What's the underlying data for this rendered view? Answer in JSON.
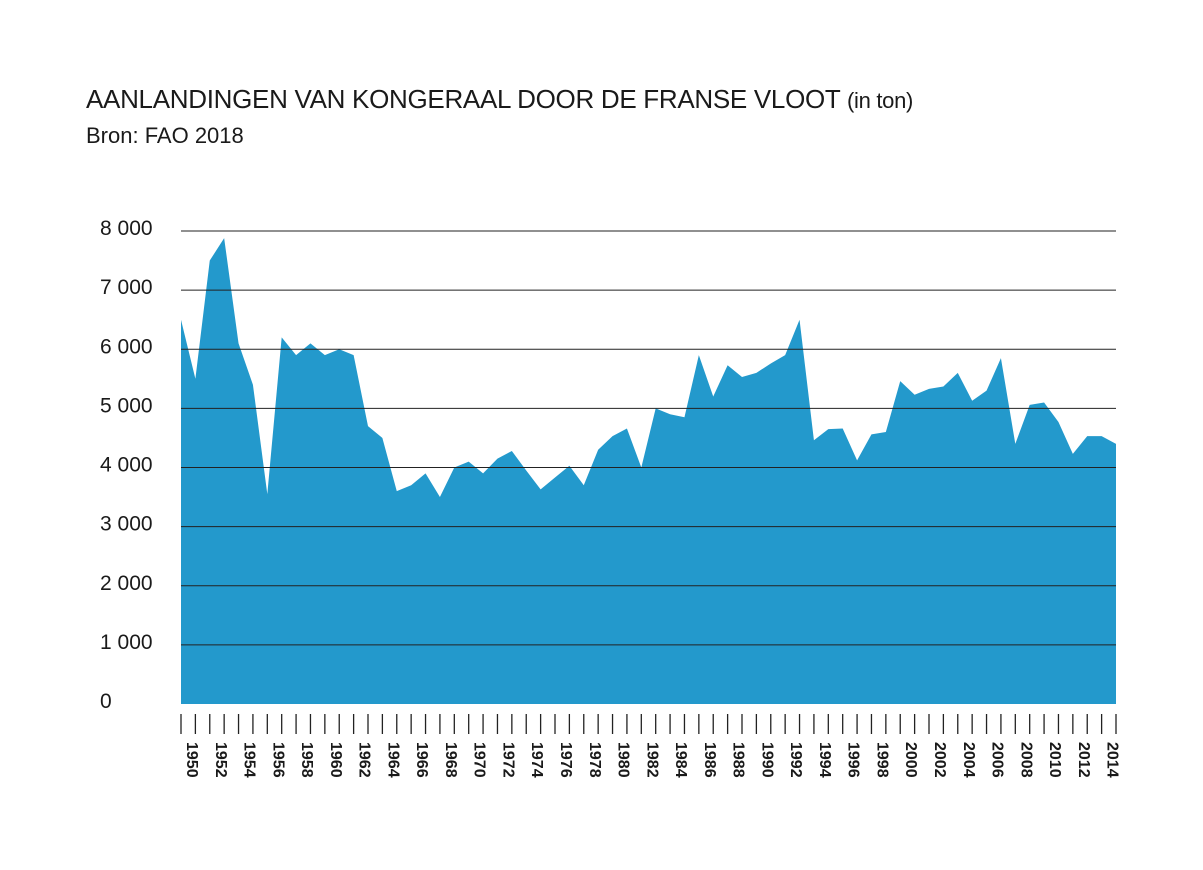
{
  "chart_data": {
    "type": "area",
    "title": "AANLANDINGEN VAN KONGERAAL DOOR DE FRANSE VLOOT",
    "title_unit": "(in ton)",
    "subtitle": "Bron: FAO 2018",
    "xlabel": "",
    "ylabel": "",
    "ylim": [
      0,
      8000
    ],
    "yticks": [
      0,
      1000,
      2000,
      3000,
      4000,
      5000,
      6000,
      7000,
      8000
    ],
    "ytick_labels": [
      "0",
      "1 000",
      "2 000",
      "3 000",
      "4 000",
      "5 000",
      "6 000",
      "7 000",
      "8 000"
    ],
    "xtick_labels": [
      "1950",
      "1952",
      "1954",
      "1956",
      "1958",
      "1960",
      "1962",
      "1964",
      "1966",
      "1968",
      "1970",
      "1972",
      "1974",
      "1976",
      "1978",
      "1980",
      "1982",
      "1984",
      "1986",
      "1988",
      "1990",
      "1992",
      "1994",
      "1996",
      "1998",
      "2000",
      "2002",
      "2004",
      "2006",
      "2008",
      "2010",
      "2012",
      "2014"
    ],
    "grid": true,
    "color": "#2399cc",
    "series": [
      {
        "x": [
          1950,
          1951,
          1952,
          1953,
          1954,
          1955,
          1956,
          1957,
          1958,
          1959,
          1960,
          1961,
          1962,
          1963,
          1964,
          1965,
          1966,
          1967,
          1968,
          1969,
          1970,
          1971,
          1972,
          1973,
          1974,
          1975,
          1976,
          1977,
          1978,
          1979,
          1980,
          1981,
          1982,
          1983,
          1984,
          1985,
          1986,
          1987,
          1988,
          1989,
          1990,
          1991,
          1992,
          1993,
          1994,
          1995,
          1996,
          1997,
          1998,
          1999,
          2000,
          2001,
          2002,
          2003,
          2004,
          2005,
          2006,
          2007,
          2008,
          2009,
          2010,
          2011,
          2012,
          2013,
          2014,
          2015
        ],
        "values": [
          6500,
          5500,
          7500,
          7880,
          6100,
          5400,
          3550,
          6200,
          5900,
          6100,
          5900,
          6000,
          5900,
          4700,
          4500,
          3600,
          3700,
          3900,
          3500,
          4000,
          4100,
          3900,
          4150,
          4280,
          3950,
          3630,
          3830,
          4030,
          3700,
          4300,
          4530,
          4660,
          4000,
          5000,
          4900,
          4850,
          5900,
          5200,
          5730,
          5530,
          5600,
          5760,
          5900,
          6500,
          4460,
          4650,
          4660,
          4120,
          4560,
          4600,
          5460,
          5230,
          5330,
          5370,
          5600,
          5130,
          5300,
          5850,
          4400,
          5060,
          5100,
          4770,
          4230,
          4530,
          4530,
          4400
        ]
      }
    ]
  }
}
